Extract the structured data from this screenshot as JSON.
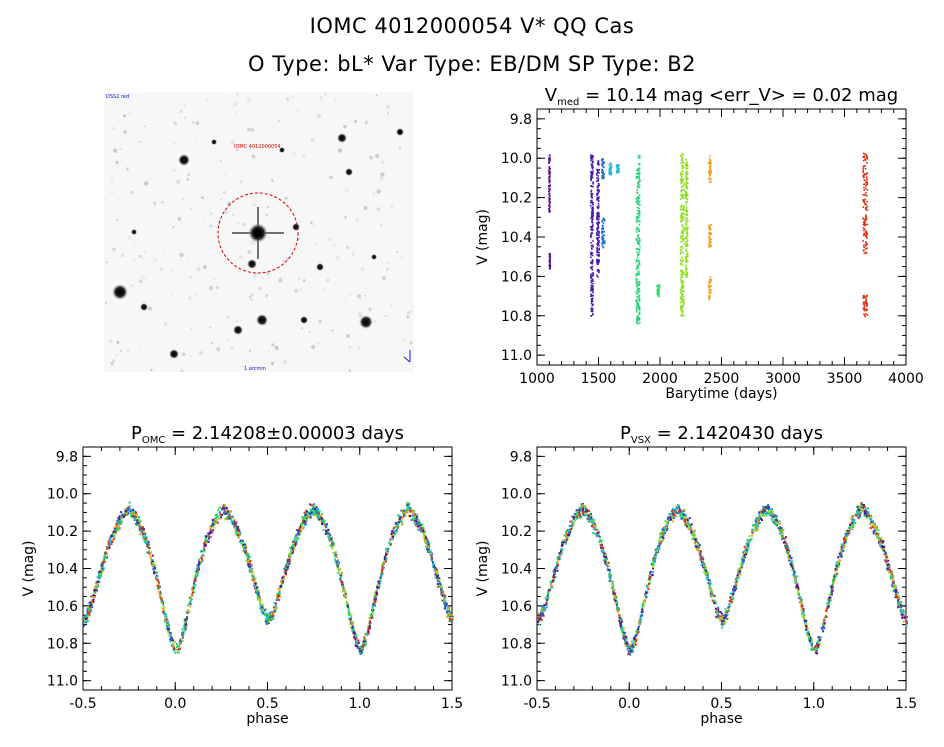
{
  "header": {
    "line1": "IOMC 4012000054   V* QQ Cas",
    "line2": "O Type: bL*  Var Type: EB/DM  SP Type: B2"
  },
  "finder": {
    "label_top_left": "DSS2 red",
    "label_target": "IOMC 4012000054",
    "label_bottom": "1 arcmin"
  },
  "colors": {
    "seasons": [
      "#5a0f8a",
      "#4a1aa8",
      "#1a6fd0",
      "#22b8e0",
      "#25d07a",
      "#22e05a",
      "#8ee020",
      "#f0a020",
      "#e03010"
    ]
  },
  "chart_data": [
    {
      "id": "lightcurve",
      "type": "scatter",
      "title_main": "V",
      "title_sub": "med",
      "title_rest": " = 10.14 mag <err_V> = 0.02 mag",
      "xlabel": "Barytime (days)",
      "ylabel": "V (mag)",
      "xlim": [
        1000,
        4000
      ],
      "ylim": [
        11.05,
        9.75
      ],
      "xticks": [
        "1000",
        "1500",
        "2000",
        "2500",
        "3000",
        "3500",
        "4000"
      ],
      "yticks": [
        "9.8",
        "10.0",
        "10.2",
        "10.4",
        "10.6",
        "10.8",
        "11.0"
      ],
      "clumps": [
        {
          "x": [
            1090,
            1100
          ],
          "y": [
            9.98,
            10.28
          ],
          "color": "#5a0f8a"
        },
        {
          "x": [
            1095,
            1102
          ],
          "y": [
            10.48,
            10.56
          ],
          "color": "#5a0f8a"
        },
        {
          "x": [
            1430,
            1450
          ],
          "y": [
            9.98,
            10.8
          ],
          "color": "#4a1aa8"
        },
        {
          "x": [
            1480,
            1500
          ],
          "y": [
            10.0,
            10.6
          ],
          "color": "#4a1aa8"
        },
        {
          "x": [
            1520,
            1545
          ],
          "y": [
            10.3,
            10.45
          ],
          "color": "#1a6fd0"
        },
        {
          "x": [
            1520,
            1540
          ],
          "y": [
            10.0,
            10.1
          ],
          "color": "#1a6fd0"
        },
        {
          "x": [
            1580,
            1600
          ],
          "y": [
            10.02,
            10.08
          ],
          "color": "#22b8e0"
        },
        {
          "x": [
            1640,
            1660
          ],
          "y": [
            10.03,
            10.07
          ],
          "color": "#22b8e0"
        },
        {
          "x": [
            1800,
            1830
          ],
          "y": [
            9.98,
            10.84
          ],
          "color": "#25d07a"
        },
        {
          "x": [
            1970,
            1990
          ],
          "y": [
            10.64,
            10.7
          ],
          "color": "#22e05a"
        },
        {
          "x": [
            2160,
            2190
          ],
          "y": [
            9.97,
            10.8
          ],
          "color": "#8ee020"
        },
        {
          "x": [
            2200,
            2220
          ],
          "y": [
            10.0,
            10.6
          ],
          "color": "#8ee020"
        },
        {
          "x": [
            2390,
            2410
          ],
          "y": [
            9.98,
            10.12
          ],
          "color": "#f0a020"
        },
        {
          "x": [
            2390,
            2410
          ],
          "y": [
            10.33,
            10.45
          ],
          "color": "#f0a020"
        },
        {
          "x": [
            2390,
            2410
          ],
          "y": [
            10.6,
            10.72
          ],
          "color": "#f0a020"
        },
        {
          "x": [
            3645,
            3680
          ],
          "y": [
            9.97,
            10.48
          ],
          "color": "#e03010"
        },
        {
          "x": [
            3645,
            3680
          ],
          "y": [
            10.68,
            10.8
          ],
          "color": "#e03010"
        }
      ]
    },
    {
      "id": "phase_omc",
      "type": "scatter",
      "title_main": "P",
      "title_sub": "OMC",
      "title_rest": " = 2.14208±0.00003 days",
      "xlabel": "phase",
      "ylabel": "V (mag)",
      "xlim": [
        -0.5,
        1.5
      ],
      "ylim": [
        11.05,
        9.75
      ],
      "xticks": [
        "-0.5",
        "0.0",
        "0.5",
        "1.0",
        "1.5"
      ],
      "yticks": [
        "9.8",
        "10.0",
        "10.2",
        "10.4",
        "10.6",
        "10.8",
        "11.0"
      ],
      "curve": {
        "max_mag": 10.02,
        "primary_min": 10.83,
        "secondary_min": 10.67,
        "scatter": 0.05
      }
    },
    {
      "id": "phase_vsx",
      "type": "scatter",
      "title_main": "P",
      "title_sub": "VSX",
      "title_rest": " = 2.1420430 days",
      "xlabel": "phase",
      "ylabel": "V (mag)",
      "xlim": [
        -0.5,
        1.5
      ],
      "ylim": [
        11.05,
        9.75
      ],
      "xticks": [
        "-0.5",
        "0.0",
        "0.5",
        "1.0",
        "1.5"
      ],
      "yticks": [
        "9.8",
        "10.0",
        "10.2",
        "10.4",
        "10.6",
        "10.8",
        "11.0"
      ],
      "curve": {
        "max_mag": 10.02,
        "primary_min": 10.83,
        "secondary_min": 10.67,
        "scatter": 0.05
      }
    }
  ]
}
